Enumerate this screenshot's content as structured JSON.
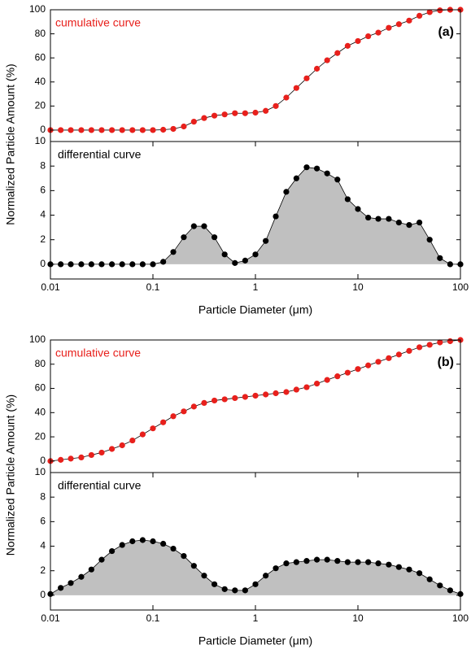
{
  "chart_data": [
    {
      "type": "line",
      "xscale": "log",
      "xlim": [
        0.01,
        100
      ],
      "ylim": [
        -9.5,
        100
      ],
      "yticks": [
        0,
        20,
        40,
        60,
        80,
        100
      ],
      "ylabel": "Normalized Particle Amount (%)",
      "annotation": "cumulative curve",
      "panel_label": "(a)",
      "color": "#e8201c",
      "x": [
        0.01,
        0.0126,
        0.0158,
        0.02,
        0.0251,
        0.0316,
        0.0398,
        0.0501,
        0.0631,
        0.0794,
        0.1,
        0.126,
        0.158,
        0.2,
        0.251,
        0.316,
        0.398,
        0.501,
        0.631,
        0.794,
        1,
        1.26,
        1.58,
        2,
        2.51,
        3.16,
        3.98,
        5.01,
        6.31,
        7.94,
        10,
        12.6,
        15.8,
        20,
        25.1,
        31.6,
        39.8,
        50.1,
        63.1,
        79.4,
        100
      ],
      "values": [
        0,
        0,
        0,
        0,
        0,
        0,
        0,
        0,
        0,
        0,
        0,
        0.3,
        1,
        3,
        7,
        10,
        12,
        13,
        14,
        14,
        14.5,
        16,
        20,
        27,
        35,
        43,
        51,
        58,
        64,
        70,
        74,
        78,
        81,
        85,
        88,
        91,
        95,
        98,
        99.5,
        100,
        100
      ]
    },
    {
      "type": "area",
      "xscale": "log",
      "xlim": [
        0.01,
        100
      ],
      "xticks": [
        0.01,
        0.1,
        1,
        10,
        100
      ],
      "ylim": [
        -1.2,
        10
      ],
      "yticks": [
        0,
        2,
        4,
        6,
        8,
        10
      ],
      "xlabel": "Particle Diameter (μm)",
      "annotation": "differential curve",
      "color": "#000000",
      "fill": "#c0c0c0",
      "x": [
        0.01,
        0.0126,
        0.0158,
        0.02,
        0.0251,
        0.0316,
        0.0398,
        0.0501,
        0.0631,
        0.0794,
        0.1,
        0.126,
        0.158,
        0.2,
        0.251,
        0.316,
        0.398,
        0.501,
        0.631,
        0.794,
        1,
        1.26,
        1.58,
        2,
        2.51,
        3.16,
        3.98,
        5.01,
        6.31,
        7.94,
        10,
        12.6,
        15.8,
        20,
        25.1,
        31.6,
        39.8,
        50.1,
        63.1,
        79.4,
        100
      ],
      "values": [
        0,
        0,
        0,
        0,
        0,
        0,
        0,
        0,
        0,
        0,
        0,
        0.2,
        1,
        2.2,
        3.1,
        3.1,
        2.2,
        0.8,
        0.1,
        0.3,
        0.8,
        1.9,
        3.9,
        5.9,
        7,
        7.9,
        7.8,
        7.4,
        6.9,
        5.3,
        4.5,
        3.8,
        3.7,
        3.7,
        3.4,
        3.2,
        3.4,
        2,
        0.5,
        0,
        0
      ]
    },
    {
      "type": "line",
      "xscale": "log",
      "xlim": [
        0.01,
        100
      ],
      "ylim": [
        -9.5,
        100
      ],
      "yticks": [
        0,
        20,
        40,
        60,
        80,
        100
      ],
      "ylabel": "Normalized Particle Amount (%)",
      "annotation": "cumulative curve",
      "panel_label": "(b)",
      "color": "#e8201c",
      "x": [
        0.01,
        0.0126,
        0.0158,
        0.02,
        0.0251,
        0.0316,
        0.0398,
        0.0501,
        0.0631,
        0.0794,
        0.1,
        0.126,
        0.158,
        0.2,
        0.251,
        0.316,
        0.398,
        0.501,
        0.631,
        0.794,
        1,
        1.26,
        1.58,
        2,
        2.51,
        3.16,
        3.98,
        5.01,
        6.31,
        7.94,
        10,
        12.6,
        15.8,
        20,
        25.1,
        31.6,
        39.8,
        50.1,
        63.1,
        79.4,
        100
      ],
      "values": [
        0,
        1,
        2,
        3,
        5,
        7,
        10,
        13,
        17,
        22,
        27,
        32,
        37,
        41,
        45,
        48,
        50,
        51,
        52,
        53,
        54,
        55,
        56,
        57,
        59,
        61,
        64,
        67,
        70,
        73,
        76,
        79,
        82,
        85,
        88,
        91,
        94,
        96,
        98,
        99,
        100
      ]
    },
    {
      "type": "area",
      "xscale": "log",
      "xlim": [
        0.01,
        100
      ],
      "xticks": [
        0.01,
        0.1,
        1,
        10,
        100
      ],
      "ylim": [
        -1.2,
        10
      ],
      "yticks": [
        0,
        2,
        4,
        6,
        8,
        10
      ],
      "xlabel": "Particle Diameter (μm)",
      "annotation": "differential curve",
      "color": "#000000",
      "fill": "#c0c0c0",
      "x": [
        0.01,
        0.0126,
        0.0158,
        0.02,
        0.0251,
        0.0316,
        0.0398,
        0.0501,
        0.0631,
        0.0794,
        0.1,
        0.126,
        0.158,
        0.2,
        0.251,
        0.316,
        0.398,
        0.501,
        0.631,
        0.794,
        1,
        1.26,
        1.58,
        2,
        2.51,
        3.16,
        3.98,
        5.01,
        6.31,
        7.94,
        10,
        12.6,
        15.8,
        20,
        25.1,
        31.6,
        39.8,
        50.1,
        63.1,
        79.4,
        100
      ],
      "values": [
        0.1,
        0.6,
        1,
        1.5,
        2.1,
        2.9,
        3.6,
        4.1,
        4.4,
        4.5,
        4.4,
        4.2,
        3.8,
        3.2,
        2.4,
        1.6,
        0.9,
        0.5,
        0.4,
        0.4,
        0.9,
        1.6,
        2.2,
        2.6,
        2.7,
        2.8,
        2.9,
        2.9,
        2.8,
        2.7,
        2.7,
        2.7,
        2.6,
        2.5,
        2.3,
        2.1,
        1.8,
        1.3,
        0.8,
        0.4,
        0.1
      ]
    }
  ]
}
